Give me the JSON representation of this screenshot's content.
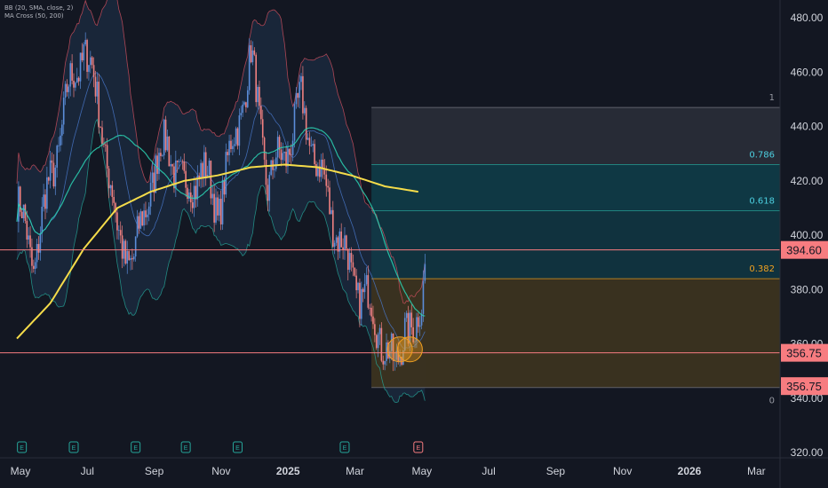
{
  "legend": {
    "bb": "BB (20, SMA, close, 2)",
    "ma": "MA Cross (50, 200)"
  },
  "colors": {
    "background": "#131722",
    "up_candle": "#5b8dd9",
    "down_candle": "#f08080",
    "bb_fill": "#1c2a40",
    "bb_upper": "#d2505f",
    "bb_basis": "#4a7bd0",
    "bb_lower": "#26a69a",
    "ma50": "#2bd4b4",
    "ma200": "#f5dc4a",
    "hline": "#f77c80",
    "fib_top": "#2a2e39",
    "fib_mid": "#0f3e4a",
    "fib_low": "#3d3a2a",
    "fib_bottom": "#3b311f",
    "highlight": "#f0a020"
  },
  "chart_data": {
    "type": "candlestick",
    "title": "",
    "y_range": [
      320,
      485
    ],
    "y_ticks": [
      "480.00",
      "460.00",
      "440.00",
      "420.00",
      "400.00",
      "380.00",
      "360.00",
      "340.00",
      "320.00"
    ],
    "y_tick_values": [
      480,
      460,
      440,
      420,
      400,
      380,
      360,
      340,
      320
    ],
    "x_labels": [
      "May",
      "Jul",
      "Sep",
      "Nov",
      "2025",
      "Mar",
      "May",
      "Jul",
      "Sep",
      "Nov",
      "2026",
      "Mar"
    ],
    "x_label_months": [
      0,
      2,
      4,
      6,
      8,
      10,
      12,
      14,
      16,
      18,
      20,
      22
    ],
    "x_month_start": "2024-05",
    "price_path": [
      [
        0,
        412
      ],
      [
        0.5,
        390
      ],
      [
        1.0,
        420
      ],
      [
        1.5,
        450
      ],
      [
        2.0,
        470
      ],
      [
        2.5,
        445
      ],
      [
        3.0,
        400
      ],
      [
        3.5,
        390
      ],
      [
        4.0,
        420
      ],
      [
        4.5,
        435
      ],
      [
        5.0,
        415
      ],
      [
        5.5,
        425
      ],
      [
        6.0,
        410
      ],
      [
        6.5,
        435
      ],
      [
        7.0,
        465
      ],
      [
        7.5,
        420
      ],
      [
        8.0,
        430
      ],
      [
        8.5,
        448
      ],
      [
        9.0,
        425
      ],
      [
        9.5,
        405
      ],
      [
        10.0,
        385
      ],
      [
        10.5,
        375
      ],
      [
        11.0,
        360
      ],
      [
        11.3,
        348
      ],
      [
        11.6,
        370
      ],
      [
        11.9,
        360
      ],
      [
        12.1,
        375
      ],
      [
        12.2,
        393
      ]
    ],
    "ma200_path": [
      [
        0,
        362
      ],
      [
        1,
        375
      ],
      [
        2,
        395
      ],
      [
        3,
        410
      ],
      [
        4,
        416
      ],
      [
        5,
        420
      ],
      [
        6,
        422
      ],
      [
        7,
        425
      ],
      [
        8,
        426
      ],
      [
        9,
        425
      ],
      [
        10,
        422
      ],
      [
        11,
        418
      ],
      [
        12,
        416
      ]
    ],
    "fib": {
      "levels": [
        {
          "ratio": "1",
          "price": 447
        },
        {
          "ratio": "0.786",
          "price": 426
        },
        {
          "ratio": "0.618",
          "price": 409
        },
        {
          "ratio": "0.382",
          "price": 384
        },
        {
          "ratio": "0",
          "price": 344
        }
      ],
      "start_month": 10.6,
      "end_month": 23.0
    },
    "horizontal_lines": [
      {
        "label": "394.60",
        "price": 394.6
      },
      {
        "label": "356.75",
        "price": 356.75
      }
    ],
    "price_tags": [
      "394.60",
      "356.75",
      "356.75"
    ],
    "highlight_circles": [
      {
        "month": 11.45,
        "price": 358
      },
      {
        "month": 11.75,
        "price": 358
      }
    ],
    "earnings_markers": [
      {
        "month": 0.15,
        "label": "E"
      },
      {
        "month": 1.7,
        "label": "E"
      },
      {
        "month": 3.55,
        "label": "E"
      },
      {
        "month": 5.05,
        "label": "E"
      },
      {
        "month": 6.6,
        "label": "E"
      },
      {
        "month": 9.8,
        "label": "E"
      },
      {
        "month": 12.0,
        "label": "E"
      }
    ]
  }
}
